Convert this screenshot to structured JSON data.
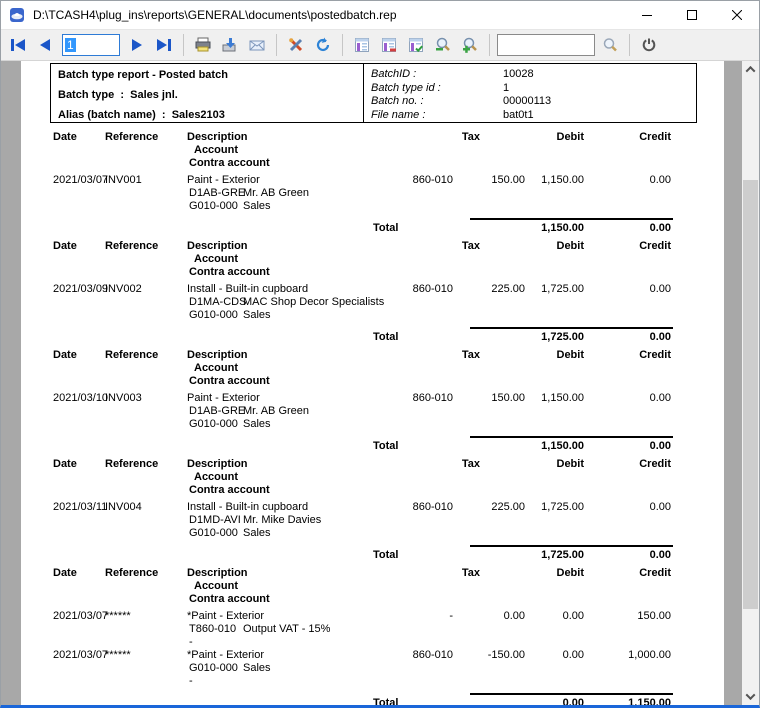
{
  "window": {
    "title": "D:\\TCASH4\\plug_ins\\reports\\GENERAL\\documents\\postedbatch.rep"
  },
  "toolbar": {
    "page_input": {
      "value": "1"
    },
    "search_input": {
      "value": "",
      "placeholder": ""
    },
    "icons": [
      "first-page",
      "previous-page",
      "next-page",
      "last-page",
      "print",
      "export",
      "email",
      "settings",
      "refresh",
      "page-layout",
      "page-layout-remove",
      "page-layout-check",
      "zoom-out",
      "zoom-in",
      "search",
      "power"
    ]
  },
  "colors": {
    "accent_blue": "#1b56c8",
    "window_border_bottom": "#1a66d9",
    "toolbar_bg": "#f0f0f0",
    "viewport_bg": "#a8a8a8",
    "selection_bg": "#3297fd"
  },
  "report": {
    "header": {
      "left": {
        "lines": [
          "Batch type report - Posted batch",
          "Batch type  :  Sales jnl.",
          "Alias (batch name)  :  Sales2103"
        ]
      },
      "right": {
        "fields": [
          {
            "label": "BatchID :",
            "value": "10028"
          },
          {
            "label": "Batch type id :",
            "value": "1"
          },
          {
            "label": "Batch no. :",
            "value": "00000113"
          },
          {
            "label": "File name :",
            "value": "bat0t1"
          }
        ]
      }
    },
    "columns": {
      "date": "Date",
      "reference": "Reference",
      "description": "Description",
      "account": "Account",
      "contra": "Contra account",
      "tax": "Tax",
      "debit": "Debit",
      "credit": "Credit"
    },
    "blocks": [
      {
        "entries": [
          {
            "date": "2021/03/07",
            "reference": "INV001",
            "description": "Paint - Exterior",
            "tax_code": "860-010",
            "tax": "150.00",
            "debit": "1,150.00",
            "credit": "0.00",
            "account_code": "D1AB-GRE",
            "account_name": "Mr. AB Green",
            "contra_code": "G010-000",
            "contra_name": "Sales"
          }
        ],
        "total": {
          "label": "Total",
          "debit": "1,150.00",
          "credit": "0.00"
        }
      },
      {
        "entries": [
          {
            "date": "2021/03/09",
            "reference": "INV002",
            "description": "Install - Built-in cupboard",
            "tax_code": "860-010",
            "tax": "225.00",
            "debit": "1,725.00",
            "credit": "0.00",
            "account_code": "D1MA-CDS",
            "account_name": "MAC Shop Decor Specialists",
            "contra_code": "G010-000",
            "contra_name": "Sales"
          }
        ],
        "total": {
          "label": "Total",
          "debit": "1,725.00",
          "credit": "0.00"
        }
      },
      {
        "entries": [
          {
            "date": "2021/03/10",
            "reference": "INV003",
            "description": "Paint - Exterior",
            "tax_code": "860-010",
            "tax": "150.00",
            "debit": "1,150.00",
            "credit": "0.00",
            "account_code": "D1AB-GRE",
            "account_name": "Mr. AB Green",
            "contra_code": "G010-000",
            "contra_name": "Sales"
          }
        ],
        "total": {
          "label": "Total",
          "debit": "1,150.00",
          "credit": "0.00"
        }
      },
      {
        "entries": [
          {
            "date": "2021/03/11",
            "reference": "INV004",
            "description": "Install - Built-in cupboard",
            "tax_code": "860-010",
            "tax": "225.00",
            "debit": "1,725.00",
            "credit": "0.00",
            "account_code": "D1MD-AVI",
            "account_name": "Mr. Mike Davies",
            "contra_code": "G010-000",
            "contra_name": "Sales"
          }
        ],
        "total": {
          "label": "Total",
          "debit": "1,725.00",
          "credit": "0.00"
        }
      },
      {
        "entries": [
          {
            "date": "2021/03/07",
            "reference": "******",
            "description": "*Paint - Exterior",
            "tax_code": "-",
            "tax": "0.00",
            "debit": "0.00",
            "credit": "150.00",
            "account_code": "T860-010",
            "account_name": "Output VAT - 15%",
            "contra_code": "-",
            "contra_name": ""
          },
          {
            "date": "2021/03/07",
            "reference": "******",
            "description": "*Paint - Exterior",
            "tax_code": "860-010",
            "tax": "-150.00",
            "debit": "0.00",
            "credit": "1,000.00",
            "account_code": "G010-000",
            "account_name": "Sales",
            "contra_code": "-",
            "contra_name": ""
          }
        ],
        "total": {
          "label": "Total",
          "debit": "0.00",
          "credit": "1,150.00"
        }
      }
    ]
  }
}
